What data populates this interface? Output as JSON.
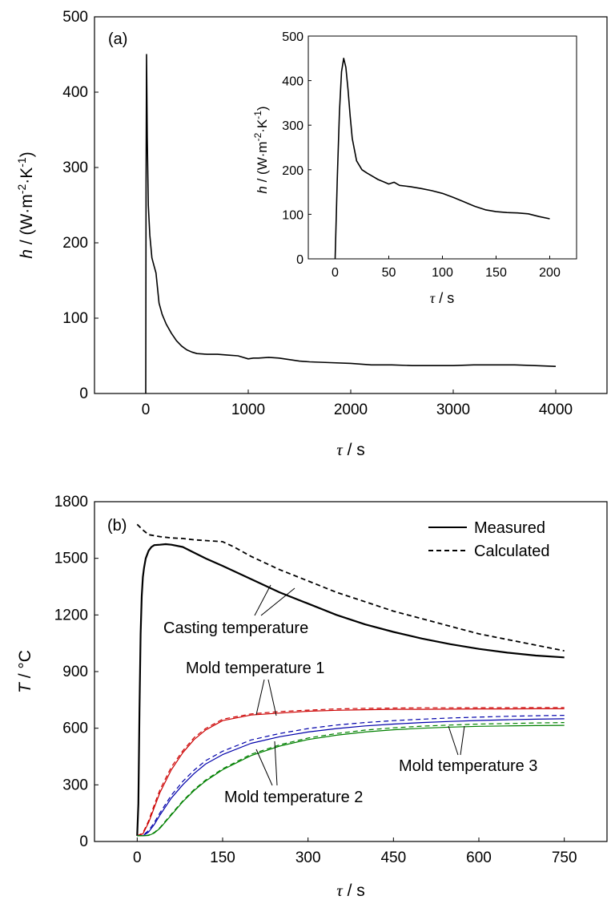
{
  "chart_data": [
    {
      "type": "line",
      "panel_label": "(a)",
      "xlabel_sym": "τ",
      "xlabel_unit": " / s",
      "ylabel_sym": "h",
      "ylabel_unit": " / (W·m",
      "ylabel_exp1": "-2",
      "ylabel_mid": "·K",
      "ylabel_exp2": "-1",
      "ylabel_end": ")",
      "xlim": [
        -500,
        4500
      ],
      "ylim": [
        0,
        500
      ],
      "xticks": [
        0,
        1000,
        2000,
        3000,
        4000
      ],
      "yticks": [
        0,
        100,
        200,
        300,
        400,
        500
      ],
      "series": [
        {
          "color": "#000000",
          "x": [
            0,
            3,
            8,
            15,
            25,
            40,
            60,
            80,
            100,
            130,
            160,
            200,
            250,
            300,
            350,
            400,
            450,
            500,
            600,
            700,
            800,
            900,
            1000,
            1050,
            1100,
            1200,
            1300,
            1400,
            1500,
            1600,
            1800,
            2000,
            2200,
            2400,
            2600,
            2800,
            3000,
            3200,
            3400,
            3600,
            3800,
            4000
          ],
          "y": [
            0,
            280,
            450,
            340,
            250,
            210,
            180,
            170,
            160,
            120,
            105,
            92,
            80,
            70,
            63,
            58,
            55,
            53,
            52,
            52,
            51,
            50,
            46,
            47,
            47,
            48,
            47,
            45,
            43,
            42,
            41,
            40,
            38,
            38,
            37,
            37,
            37,
            38,
            38,
            38,
            37,
            36
          ]
        }
      ],
      "inset": {
        "xlabel_sym": "τ",
        "xlabel_unit": " / s",
        "ylabel_sym": "h",
        "ylabel_unit": " / (W·m",
        "ylabel_exp1": "-2",
        "ylabel_mid": "·K",
        "ylabel_exp2": "-1",
        "ylabel_end": ")",
        "xlim": [
          -25,
          225
        ],
        "ylim": [
          0,
          500
        ],
        "xticks": [
          0,
          50,
          100,
          150,
          200
        ],
        "yticks": [
          0,
          100,
          200,
          300,
          400,
          500
        ],
        "series": [
          {
            "color": "#000000",
            "x": [
              0,
              2,
              4,
              6,
              8,
              10,
              12,
              14,
              16,
              20,
              25,
              30,
              35,
              40,
              45,
              50,
              55,
              60,
              70,
              80,
              90,
              100,
              110,
              120,
              130,
              140,
              150,
              160,
              170,
              180,
              190,
              200
            ],
            "y": [
              0,
              180,
              330,
              420,
              450,
              430,
              380,
              320,
              270,
              220,
              200,
              192,
              185,
              178,
              173,
              168,
              172,
              165,
              162,
              158,
              153,
              147,
              138,
              128,
              118,
              110,
              106,
              104,
              103,
              101,
              95,
              90
            ]
          }
        ]
      }
    },
    {
      "type": "line",
      "panel_label": "(b)",
      "xlabel_sym": "τ",
      "xlabel_unit": " / s",
      "ylabel_sym": "T",
      "ylabel_unit": " / °C",
      "xlim": [
        -75,
        825
      ],
      "ylim": [
        0,
        1800
      ],
      "xticks": [
        0,
        150,
        300,
        450,
        600,
        750
      ],
      "yticks": [
        0,
        300,
        600,
        900,
        1200,
        1500,
        1800
      ],
      "legend": [
        {
          "name": "Measured",
          "style": "solid"
        },
        {
          "name": "Calculated",
          "style": "dashed"
        }
      ],
      "annotations": [
        {
          "text": "Casting temperature"
        },
        {
          "text": "Mold temperature 1"
        },
        {
          "text": "Mold temperature 2"
        },
        {
          "text": "Mold temperature 3"
        }
      ],
      "series": [
        {
          "group": "casting",
          "kind": "measured",
          "color": "#000000",
          "x": [
            0,
            2,
            4,
            6,
            8,
            10,
            12,
            15,
            20,
            25,
            30,
            40,
            50,
            60,
            80,
            100,
            120,
            150,
            200,
            250,
            300,
            350,
            400,
            450,
            500,
            550,
            600,
            650,
            700,
            750
          ],
          "y": [
            30,
            200,
            700,
            1100,
            1300,
            1400,
            1450,
            1500,
            1540,
            1560,
            1570,
            1572,
            1575,
            1572,
            1560,
            1530,
            1500,
            1460,
            1390,
            1320,
            1260,
            1200,
            1150,
            1110,
            1075,
            1045,
            1020,
            1000,
            985,
            975
          ]
        },
        {
          "group": "casting",
          "kind": "calculated",
          "color": "#000000",
          "x": [
            0,
            10,
            20,
            40,
            60,
            80,
            100,
            120,
            150,
            170,
            200,
            250,
            300,
            350,
            400,
            450,
            500,
            550,
            600,
            650,
            700,
            750
          ],
          "y": [
            1680,
            1650,
            1625,
            1615,
            1608,
            1605,
            1598,
            1594,
            1588,
            1560,
            1510,
            1440,
            1380,
            1320,
            1270,
            1220,
            1180,
            1140,
            1100,
            1070,
            1040,
            1010
          ]
        },
        {
          "group": "mold1",
          "kind": "measured",
          "color": "#cc0000",
          "x": [
            0,
            10,
            20,
            30,
            40,
            60,
            80,
            100,
            120,
            150,
            200,
            250,
            300,
            350,
            400,
            450,
            500,
            550,
            600,
            650,
            700,
            750
          ],
          "y": [
            30,
            40,
            100,
            180,
            260,
            380,
            470,
            540,
            590,
            640,
            670,
            680,
            690,
            695,
            698,
            700,
            700,
            701,
            702,
            702,
            703,
            703
          ]
        },
        {
          "group": "mold1",
          "kind": "calculated",
          "color": "#cc0000",
          "x": [
            0,
            10,
            20,
            30,
            40,
            60,
            80,
            100,
            120,
            150,
            200,
            250,
            300,
            350,
            400,
            450,
            500,
            550,
            600,
            650,
            700,
            750
          ],
          "y": [
            30,
            45,
            110,
            195,
            275,
            395,
            480,
            550,
            598,
            648,
            676,
            688,
            696,
            702,
            705,
            707,
            708,
            708,
            709,
            709,
            710,
            710
          ]
        },
        {
          "group": "mold2",
          "kind": "measured",
          "color": "#0000aa",
          "x": [
            0,
            10,
            20,
            30,
            40,
            60,
            80,
            100,
            120,
            150,
            200,
            250,
            300,
            350,
            400,
            450,
            500,
            550,
            600,
            650,
            700,
            750
          ],
          "y": [
            30,
            30,
            50,
            90,
            140,
            230,
            300,
            360,
            410,
            460,
            520,
            555,
            580,
            598,
            612,
            622,
            630,
            636,
            641,
            645,
            648,
            650
          ]
        },
        {
          "group": "mold2",
          "kind": "calculated",
          "color": "#0000aa",
          "x": [
            0,
            10,
            20,
            30,
            40,
            60,
            80,
            100,
            120,
            150,
            200,
            250,
            300,
            350,
            400,
            450,
            500,
            550,
            600,
            650,
            700,
            750
          ],
          "y": [
            30,
            32,
            58,
            100,
            152,
            245,
            318,
            378,
            428,
            478,
            538,
            572,
            598,
            617,
            630,
            640,
            648,
            654,
            659,
            663,
            666,
            668
          ]
        },
        {
          "group": "mold3",
          "kind": "measured",
          "color": "#008000",
          "x": [
            0,
            10,
            20,
            30,
            40,
            60,
            80,
            100,
            120,
            150,
            200,
            250,
            300,
            350,
            400,
            450,
            500,
            550,
            600,
            650,
            700,
            750
          ],
          "y": [
            30,
            30,
            32,
            45,
            70,
            140,
            210,
            270,
            320,
            380,
            455,
            505,
            540,
            563,
            580,
            592,
            600,
            606,
            610,
            612,
            614,
            615
          ]
        },
        {
          "group": "mold3",
          "kind": "calculated",
          "color": "#008000",
          "x": [
            0,
            10,
            20,
            30,
            40,
            60,
            80,
            100,
            120,
            150,
            200,
            250,
            300,
            350,
            400,
            450,
            500,
            550,
            600,
            650,
            700,
            750
          ],
          "y": [
            30,
            30,
            34,
            48,
            74,
            145,
            215,
            275,
            325,
            385,
            462,
            512,
            548,
            572,
            590,
            602,
            611,
            617,
            622,
            625,
            628,
            630
          ]
        }
      ]
    }
  ]
}
